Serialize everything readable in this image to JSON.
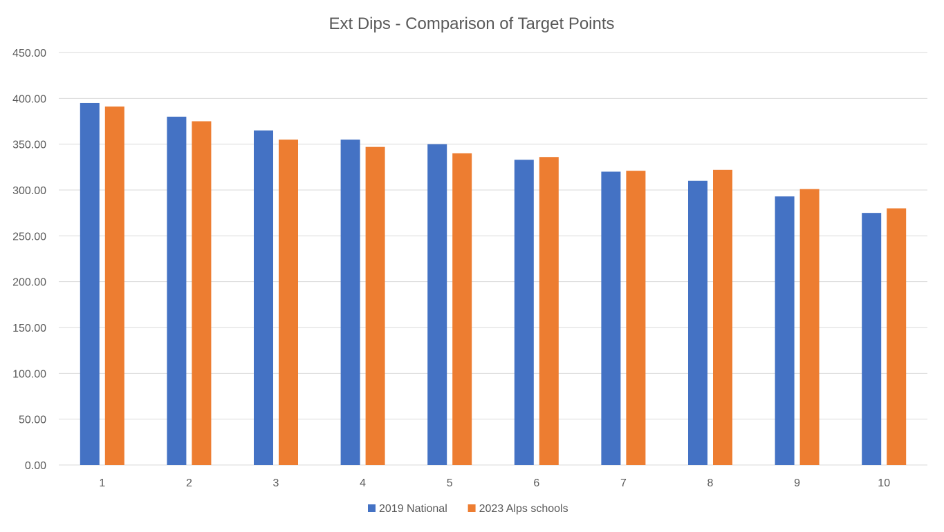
{
  "chart_data": {
    "type": "bar",
    "title": "Ext Dips - Comparison of Target Points",
    "xlabel": "",
    "ylabel": "",
    "categories": [
      "1",
      "2",
      "3",
      "4",
      "5",
      "6",
      "7",
      "8",
      "9",
      "10"
    ],
    "series": [
      {
        "name": "2019 National",
        "color": "#4472c4",
        "values": [
          395,
          380,
          365,
          355,
          350,
          333,
          320,
          310,
          293,
          275
        ]
      },
      {
        "name": "2023 Alps schools",
        "color": "#ed7d31",
        "values": [
          391,
          375,
          355,
          347,
          340,
          336,
          321,
          322,
          301,
          280
        ]
      }
    ],
    "ylim": [
      0,
      450
    ],
    "y_ticks": [
      "0.00",
      "50.00",
      "100.00",
      "150.00",
      "200.00",
      "250.00",
      "300.00",
      "350.00",
      "400.00",
      "450.00"
    ],
    "grid": true,
    "legend_position": "bottom"
  }
}
